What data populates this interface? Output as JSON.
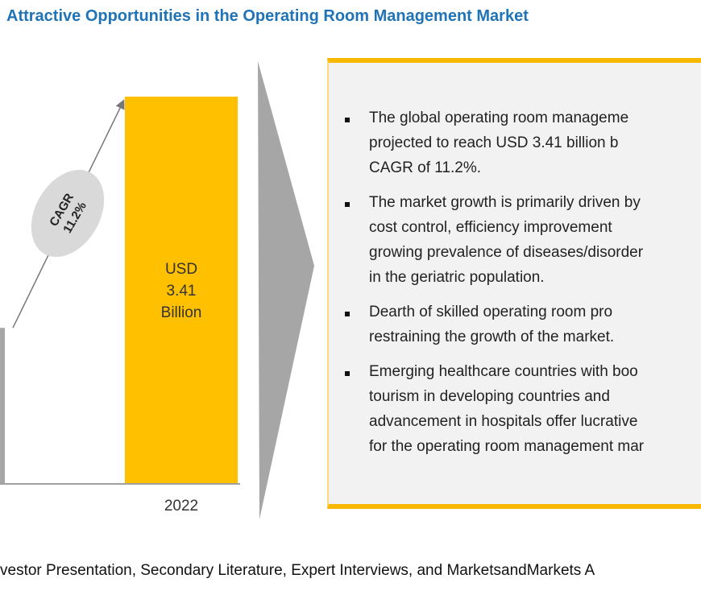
{
  "title": "Attractive Opportunities in the Operating Room Management Market",
  "chart_data": {
    "type": "bar",
    "categories": [
      "",
      "2022"
    ],
    "values": [
      1.37,
      3.41
    ],
    "value_labels": [
      "",
      "USD\n3.41\nBillion"
    ],
    "bar_label_lines": [
      "USD",
      "3.41",
      "Billion"
    ],
    "annotation": {
      "line1": "CAGR",
      "line2": "11.2%"
    },
    "colors": [
      "#a6a6a6",
      "#ffc000"
    ],
    "ylim": [
      0,
      3.6
    ],
    "grid": false
  },
  "colors": {
    "accent": "#ffc000",
    "title": "#1f73b7",
    "box_bg": "#f2f2f2",
    "chevron": "#a6a6a6"
  },
  "bullets": [
    {
      "lines": [
        "The  global  operating  room  manageme",
        "projected  to  reach  USD  3.41  billion  b",
        "CAGR of 11.2%."
      ]
    },
    {
      "lines": [
        "The market growth is primarily driven by",
        "cost  control,  efficiency  improvement",
        "growing prevalence of diseases/disorder",
        "in the geriatric population."
      ]
    },
    {
      "lines": [
        "Dearth  of  skilled  operating  room  pro",
        "restraining the growth of the market."
      ]
    },
    {
      "lines": [
        "Emerging healthcare countries with boo",
        "tourism  in  developing  countries  and",
        "advancement in hospitals offer lucrative",
        "for the operating room management mar"
      ]
    }
  ],
  "footer": "vestor Presentation, Secondary Literature, Expert Interviews, and MarketsandMarkets A"
}
